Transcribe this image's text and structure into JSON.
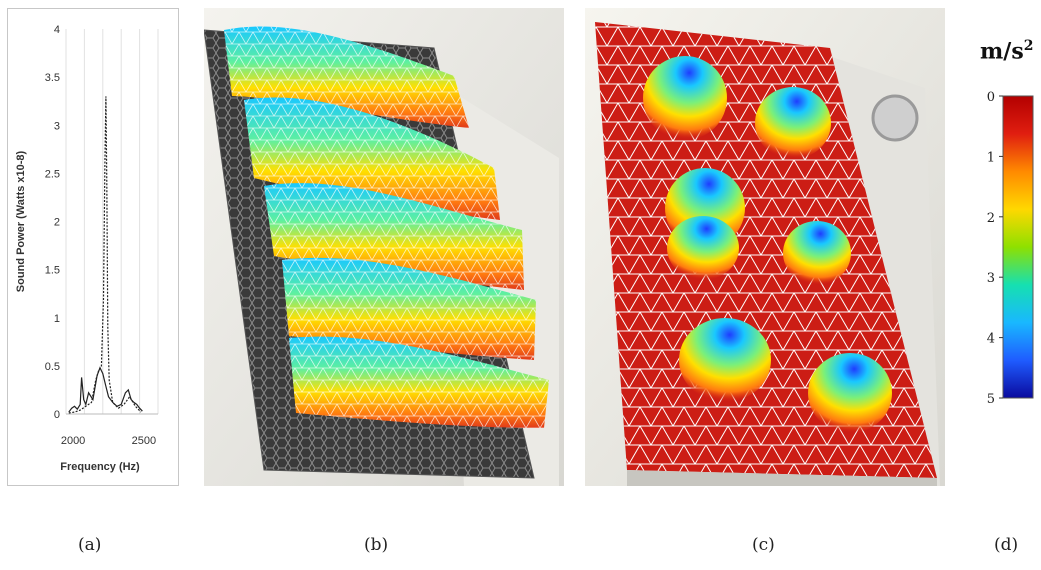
{
  "panel_a": {
    "chart_data": {
      "type": "line",
      "ylabel": "Sound Power (Watts x10-8)",
      "xlabel": "Frequency (Hz)",
      "yticks": [
        "0",
        "0.5",
        "1",
        "1.5",
        "2",
        "2.5",
        "3",
        "3.5",
        "4"
      ],
      "xticks": [
        "2000",
        "2500"
      ],
      "ylim": [
        0,
        4
      ],
      "xlim": [
        1950,
        2600
      ],
      "grid": "vertical",
      "series": [
        {
          "style": "solid",
          "x": [
            1970,
            1990,
            2010,
            2030,
            2050,
            2060,
            2075,
            2090,
            2110,
            2140,
            2170,
            2190,
            2210,
            2230,
            2250,
            2280,
            2310,
            2340,
            2370,
            2390,
            2410,
            2430,
            2450,
            2470,
            2490
          ],
          "y": [
            0.02,
            0.06,
            0.08,
            0.05,
            0.1,
            0.38,
            0.15,
            0.1,
            0.22,
            0.15,
            0.4,
            0.48,
            0.42,
            0.3,
            0.18,
            0.12,
            0.08,
            0.1,
            0.22,
            0.25,
            0.15,
            0.12,
            0.1,
            0.06,
            0.03
          ]
        },
        {
          "style": "dashed",
          "x": [
            1970,
            2010,
            2050,
            2090,
            2130,
            2160,
            2180,
            2200,
            2215,
            2225,
            2232,
            2238,
            2245,
            2255,
            2280,
            2320,
            2360,
            2400,
            2440,
            2480
          ],
          "y": [
            0.01,
            0.02,
            0.04,
            0.08,
            0.12,
            0.35,
            0.45,
            0.5,
            1.2,
            2.6,
            3.3,
            2.4,
            0.9,
            0.35,
            0.12,
            0.06,
            0.1,
            0.18,
            0.08,
            0.02
          ]
        }
      ]
    }
  },
  "colorbar": {
    "unit_base": "m/s",
    "unit_exp": "2",
    "labels": [
      "0",
      "1",
      "2",
      "3",
      "4",
      "5"
    ],
    "colors": [
      "#b30000",
      "#e01e10",
      "#ff8a00",
      "#ffd800",
      "#8ee000",
      "#16e0b0",
      "#19b8ff",
      "#1f5cff",
      "#0a0a9e"
    ]
  },
  "captions": [
    "(a)",
    "(b)",
    "(c)",
    "(d)"
  ]
}
